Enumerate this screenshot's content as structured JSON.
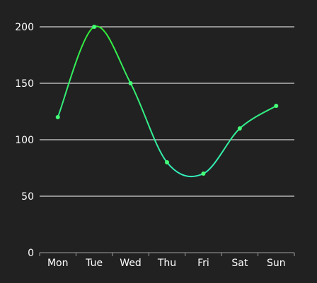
{
  "chart_data": {
    "type": "line",
    "title": "",
    "xlabel": "",
    "ylabel": "",
    "categories": [
      "Mon",
      "Tue",
      "Wed",
      "Thu",
      "Fri",
      "Sat",
      "Sun"
    ],
    "series": [
      {
        "values": [
          120,
          200,
          150,
          80,
          70,
          110,
          130
        ]
      }
    ],
    "ylim": [
      0,
      200
    ],
    "yticks": [
      0,
      50,
      100,
      150,
      200
    ],
    "smooth": true,
    "grid": "horizontal",
    "legend": "none",
    "colors": {
      "background": "#212121",
      "gridline": "#ffffff",
      "axis": "#9e9e9e",
      "text": "#ffffff",
      "line_top": "#33ee33",
      "line_bottom": "#33eebb",
      "marker": "#44ff77"
    }
  }
}
